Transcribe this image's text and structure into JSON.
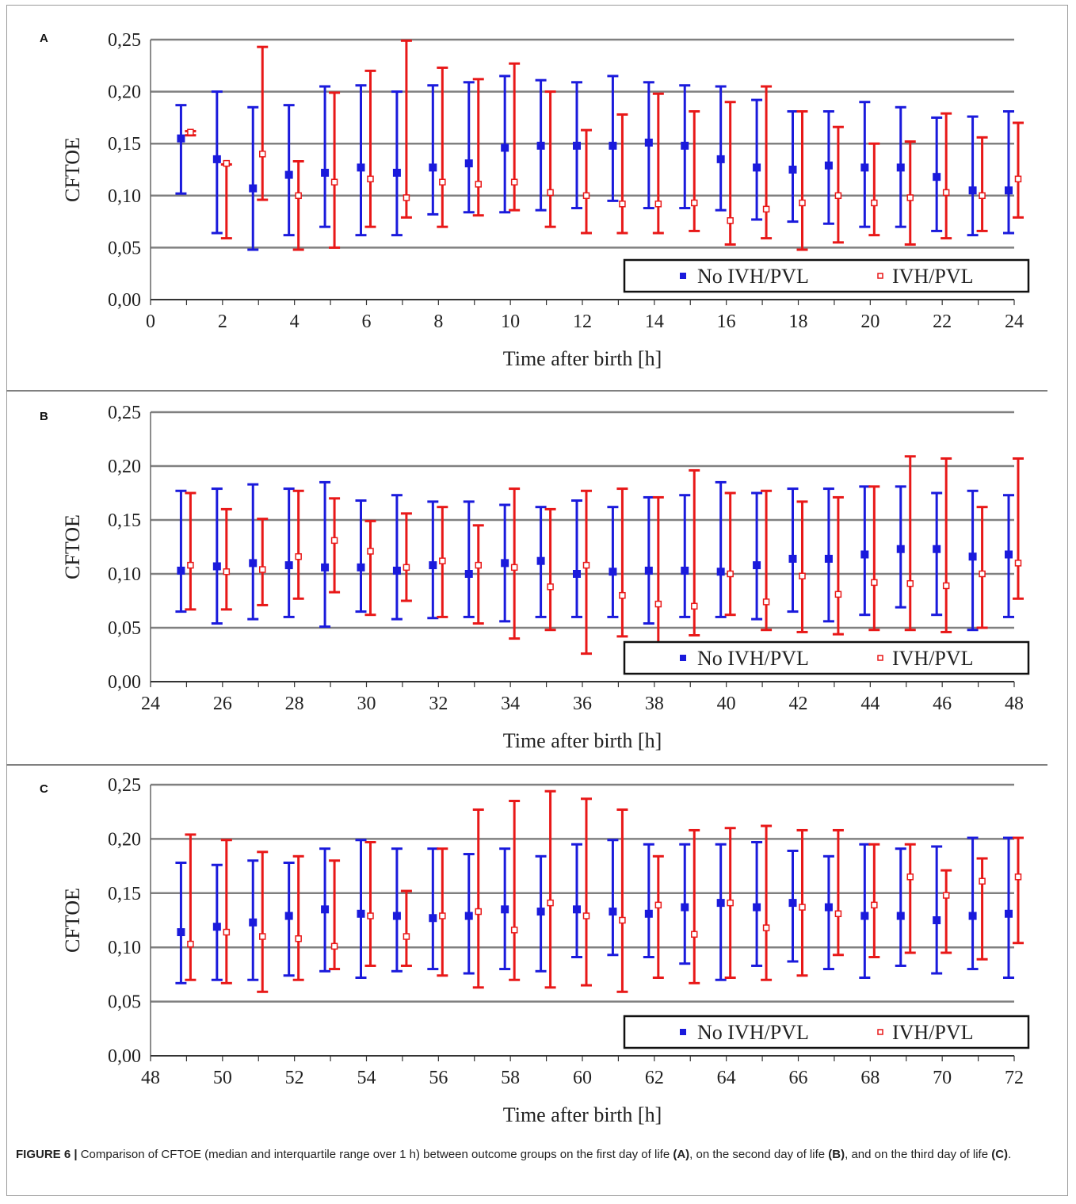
{
  "figure": {
    "caption_label": "FIGURE 6 |",
    "caption_parts": [
      {
        "text": " Comparison of CFTOE (median and interquartile range over 1 h) between outcome groups on the first day of life ",
        "bold": false
      },
      {
        "text": "(A)",
        "bold": true
      },
      {
        "text": ", on the second day of life ",
        "bold": false
      },
      {
        "text": "(B)",
        "bold": true
      },
      {
        "text": ", and on the third day of life ",
        "bold": false
      },
      {
        "text": "(C)",
        "bold": true
      },
      {
        "text": ".",
        "bold": false
      }
    ]
  },
  "colors": {
    "no_ivh": "#1a1adc",
    "ivh": "#e81818",
    "grid": "#808080"
  },
  "chart_data": [
    {
      "panel": "A",
      "type": "scatter",
      "ylabel": "CFTOE",
      "xlabel": "Time after birth [h]",
      "ylim": [
        0,
        0.25
      ],
      "yticks": [
        "0,00",
        "0,05",
        "0,10",
        "0,15",
        "0,20",
        "0,25"
      ],
      "xlim": [
        0,
        24
      ],
      "xticks": [
        "0",
        "2",
        "4",
        "6",
        "8",
        "10",
        "12",
        "14",
        "16",
        "18",
        "20",
        "22",
        "24"
      ],
      "legend": {
        "position": "bottom-right",
        "entries": [
          "No IVH/PVL",
          "IVH/PVL"
        ]
      },
      "grid": true,
      "x": [
        1,
        2,
        3,
        4,
        5,
        6,
        7,
        8,
        9,
        10,
        11,
        12,
        13,
        14,
        15,
        16,
        17,
        18,
        19,
        20,
        21,
        22,
        23,
        24
      ],
      "series": [
        {
          "name": "No IVH/PVL",
          "median": [
            0.155,
            0.135,
            0.107,
            0.12,
            0.122,
            0.127,
            0.122,
            0.127,
            0.131,
            0.146,
            0.148,
            0.148,
            0.148,
            0.151,
            0.148,
            0.135,
            0.127,
            0.125,
            0.129,
            0.127,
            0.127,
            0.118,
            0.105,
            0.105
          ],
          "q1": [
            0.102,
            0.064,
            0.048,
            0.062,
            0.07,
            0.062,
            0.062,
            0.082,
            0.084,
            0.084,
            0.086,
            0.088,
            0.095,
            0.088,
            0.088,
            0.086,
            0.077,
            0.075,
            0.073,
            0.07,
            0.07,
            0.066,
            0.062,
            0.064
          ],
          "q3": [
            0.187,
            0.2,
            0.185,
            0.187,
            0.205,
            0.206,
            0.2,
            0.206,
            0.209,
            0.215,
            0.211,
            0.209,
            0.215,
            0.209,
            0.206,
            0.205,
            0.192,
            0.181,
            0.181,
            0.19,
            0.185,
            0.175,
            0.176,
            0.181
          ]
        },
        {
          "name": "IVH/PVL",
          "median": [
            0.161,
            0.131,
            0.14,
            0.1,
            0.113,
            0.116,
            0.098,
            0.113,
            0.111,
            0.113,
            0.103,
            0.1,
            0.092,
            0.092,
            0.093,
            0.076,
            0.087,
            0.093,
            0.1,
            0.093,
            0.098,
            0.103,
            0.1,
            0.116
          ],
          "q1": [
            0.158,
            0.059,
            0.096,
            0.048,
            0.05,
            0.07,
            0.079,
            0.07,
            0.081,
            0.086,
            0.07,
            0.064,
            0.064,
            0.064,
            0.066,
            0.053,
            0.059,
            0.048,
            0.055,
            0.062,
            0.053,
            0.059,
            0.066,
            0.079
          ],
          "q3": [
            0.162,
            0.13,
            0.243,
            0.133,
            0.199,
            0.22,
            0.249,
            0.223,
            0.212,
            0.227,
            0.2,
            0.163,
            0.178,
            0.198,
            0.181,
            0.19,
            0.205,
            0.181,
            0.166,
            0.15,
            0.152,
            0.179,
            0.156,
            0.17
          ]
        }
      ]
    },
    {
      "panel": "B",
      "type": "scatter",
      "ylabel": "CFTOE",
      "xlabel": "Time after birth [h]",
      "ylim": [
        0,
        0.25
      ],
      "yticks": [
        "0,00",
        "0,05",
        "0,10",
        "0,15",
        "0,20",
        "0,25"
      ],
      "xlim": [
        24,
        48
      ],
      "xticks": [
        "24",
        "26",
        "28",
        "30",
        "32",
        "34",
        "36",
        "38",
        "40",
        "42",
        "44",
        "46",
        "48"
      ],
      "legend": {
        "position": "bottom-right",
        "entries": [
          "No IVH/PVL",
          "IVH/PVL"
        ]
      },
      "grid": true,
      "x": [
        25,
        26,
        27,
        28,
        29,
        30,
        31,
        32,
        33,
        34,
        35,
        36,
        37,
        38,
        39,
        40,
        41,
        42,
        43,
        44,
        45,
        46,
        47,
        48
      ],
      "series": [
        {
          "name": "No IVH/PVL",
          "median": [
            0.103,
            0.107,
            0.11,
            0.108,
            0.106,
            0.106,
            0.103,
            0.108,
            0.1,
            0.11,
            0.112,
            0.1,
            0.102,
            0.103,
            0.103,
            0.102,
            0.108,
            0.114,
            0.114,
            0.118,
            0.123,
            0.123,
            0.116,
            0.118
          ],
          "q1": [
            0.065,
            0.054,
            0.058,
            0.06,
            0.051,
            0.065,
            0.058,
            0.059,
            0.06,
            0.056,
            0.06,
            0.06,
            0.06,
            0.054,
            0.06,
            0.06,
            0.058,
            0.065,
            0.056,
            0.062,
            0.069,
            0.062,
            0.048,
            0.06
          ],
          "q3": [
            0.177,
            0.179,
            0.183,
            0.179,
            0.185,
            0.168,
            0.173,
            0.167,
            0.167,
            0.164,
            0.162,
            0.168,
            0.162,
            0.171,
            0.173,
            0.185,
            0.175,
            0.179,
            0.179,
            0.181,
            0.181,
            0.175,
            0.177,
            0.173
          ]
        },
        {
          "name": "IVH/PVL",
          "median": [
            0.108,
            0.102,
            0.104,
            0.116,
            0.131,
            0.121,
            0.106,
            0.112,
            0.108,
            0.106,
            0.088,
            0.108,
            0.08,
            0.072,
            0.07,
            0.1,
            0.074,
            0.098,
            0.081,
            0.092,
            0.091,
            0.089,
            0.1,
            0.11
          ],
          "q1": [
            0.067,
            0.067,
            0.071,
            0.077,
            0.083,
            0.062,
            0.075,
            0.06,
            0.054,
            0.04,
            0.048,
            0.026,
            0.042,
            0.033,
            0.043,
            0.062,
            0.048,
            0.046,
            0.044,
            0.048,
            0.048,
            0.046,
            0.05,
            0.077
          ],
          "q3": [
            0.175,
            0.16,
            0.151,
            0.177,
            0.17,
            0.149,
            0.156,
            0.162,
            0.145,
            0.179,
            0.16,
            0.177,
            0.179,
            0.171,
            0.196,
            0.175,
            0.177,
            0.167,
            0.171,
            0.181,
            0.209,
            0.207,
            0.162,
            0.207
          ]
        }
      ]
    },
    {
      "panel": "C",
      "type": "scatter",
      "ylabel": "CFTOE",
      "xlabel": "Time after birth [h]",
      "ylim": [
        0,
        0.25
      ],
      "yticks": [
        "0,00",
        "0,05",
        "0,10",
        "0,15",
        "0,20",
        "0,25"
      ],
      "xlim": [
        48,
        72
      ],
      "xticks": [
        "48",
        "50",
        "52",
        "54",
        "56",
        "58",
        "60",
        "62",
        "64",
        "66",
        "68",
        "70",
        "72"
      ],
      "legend": {
        "position": "bottom-right",
        "entries": [
          "No IVH/PVL",
          "IVH/PVL"
        ]
      },
      "grid": true,
      "x": [
        49,
        50,
        51,
        52,
        53,
        54,
        55,
        56,
        57,
        58,
        59,
        60,
        61,
        62,
        63,
        64,
        65,
        66,
        67,
        68,
        69,
        70,
        71,
        72
      ],
      "series": [
        {
          "name": "No IVH/PVL",
          "median": [
            0.114,
            0.119,
            0.123,
            0.129,
            0.135,
            0.131,
            0.129,
            0.127,
            0.129,
            0.135,
            0.133,
            0.135,
            0.133,
            0.131,
            0.137,
            0.141,
            0.137,
            0.141,
            0.137,
            0.129,
            0.129,
            0.125,
            0.129,
            0.131
          ],
          "q1": [
            0.067,
            0.07,
            0.07,
            0.074,
            0.078,
            0.072,
            0.078,
            0.08,
            0.076,
            0.08,
            0.078,
            0.091,
            0.093,
            0.091,
            0.085,
            0.07,
            0.083,
            0.087,
            0.08,
            0.072,
            0.083,
            0.076,
            0.08,
            0.072
          ],
          "q3": [
            0.178,
            0.176,
            0.18,
            0.178,
            0.191,
            0.199,
            0.191,
            0.191,
            0.186,
            0.191,
            0.184,
            0.195,
            0.199,
            0.195,
            0.195,
            0.195,
            0.197,
            0.189,
            0.184,
            0.195,
            0.191,
            0.193,
            0.201,
            0.201
          ]
        },
        {
          "name": "IVH/PVL",
          "median": [
            0.103,
            0.114,
            0.11,
            0.108,
            0.101,
            0.129,
            0.11,
            0.129,
            0.133,
            0.116,
            0.141,
            0.129,
            0.125,
            0.139,
            0.112,
            0.141,
            0.118,
            0.137,
            0.131,
            0.139,
            0.165,
            0.148,
            0.161,
            0.165
          ],
          "q1": [
            0.07,
            0.067,
            0.059,
            0.07,
            0.08,
            0.083,
            0.083,
            0.074,
            0.063,
            0.07,
            0.063,
            0.065,
            0.059,
            0.072,
            0.067,
            0.072,
            0.07,
            0.074,
            0.093,
            0.091,
            0.095,
            0.095,
            0.089,
            0.104
          ],
          "q3": [
            0.204,
            0.199,
            0.188,
            0.184,
            0.18,
            0.197,
            0.152,
            0.191,
            0.227,
            0.235,
            0.244,
            0.237,
            0.227,
            0.184,
            0.208,
            0.21,
            0.212,
            0.208,
            0.208,
            0.195,
            0.195,
            0.171,
            0.182,
            0.201
          ]
        }
      ]
    }
  ]
}
